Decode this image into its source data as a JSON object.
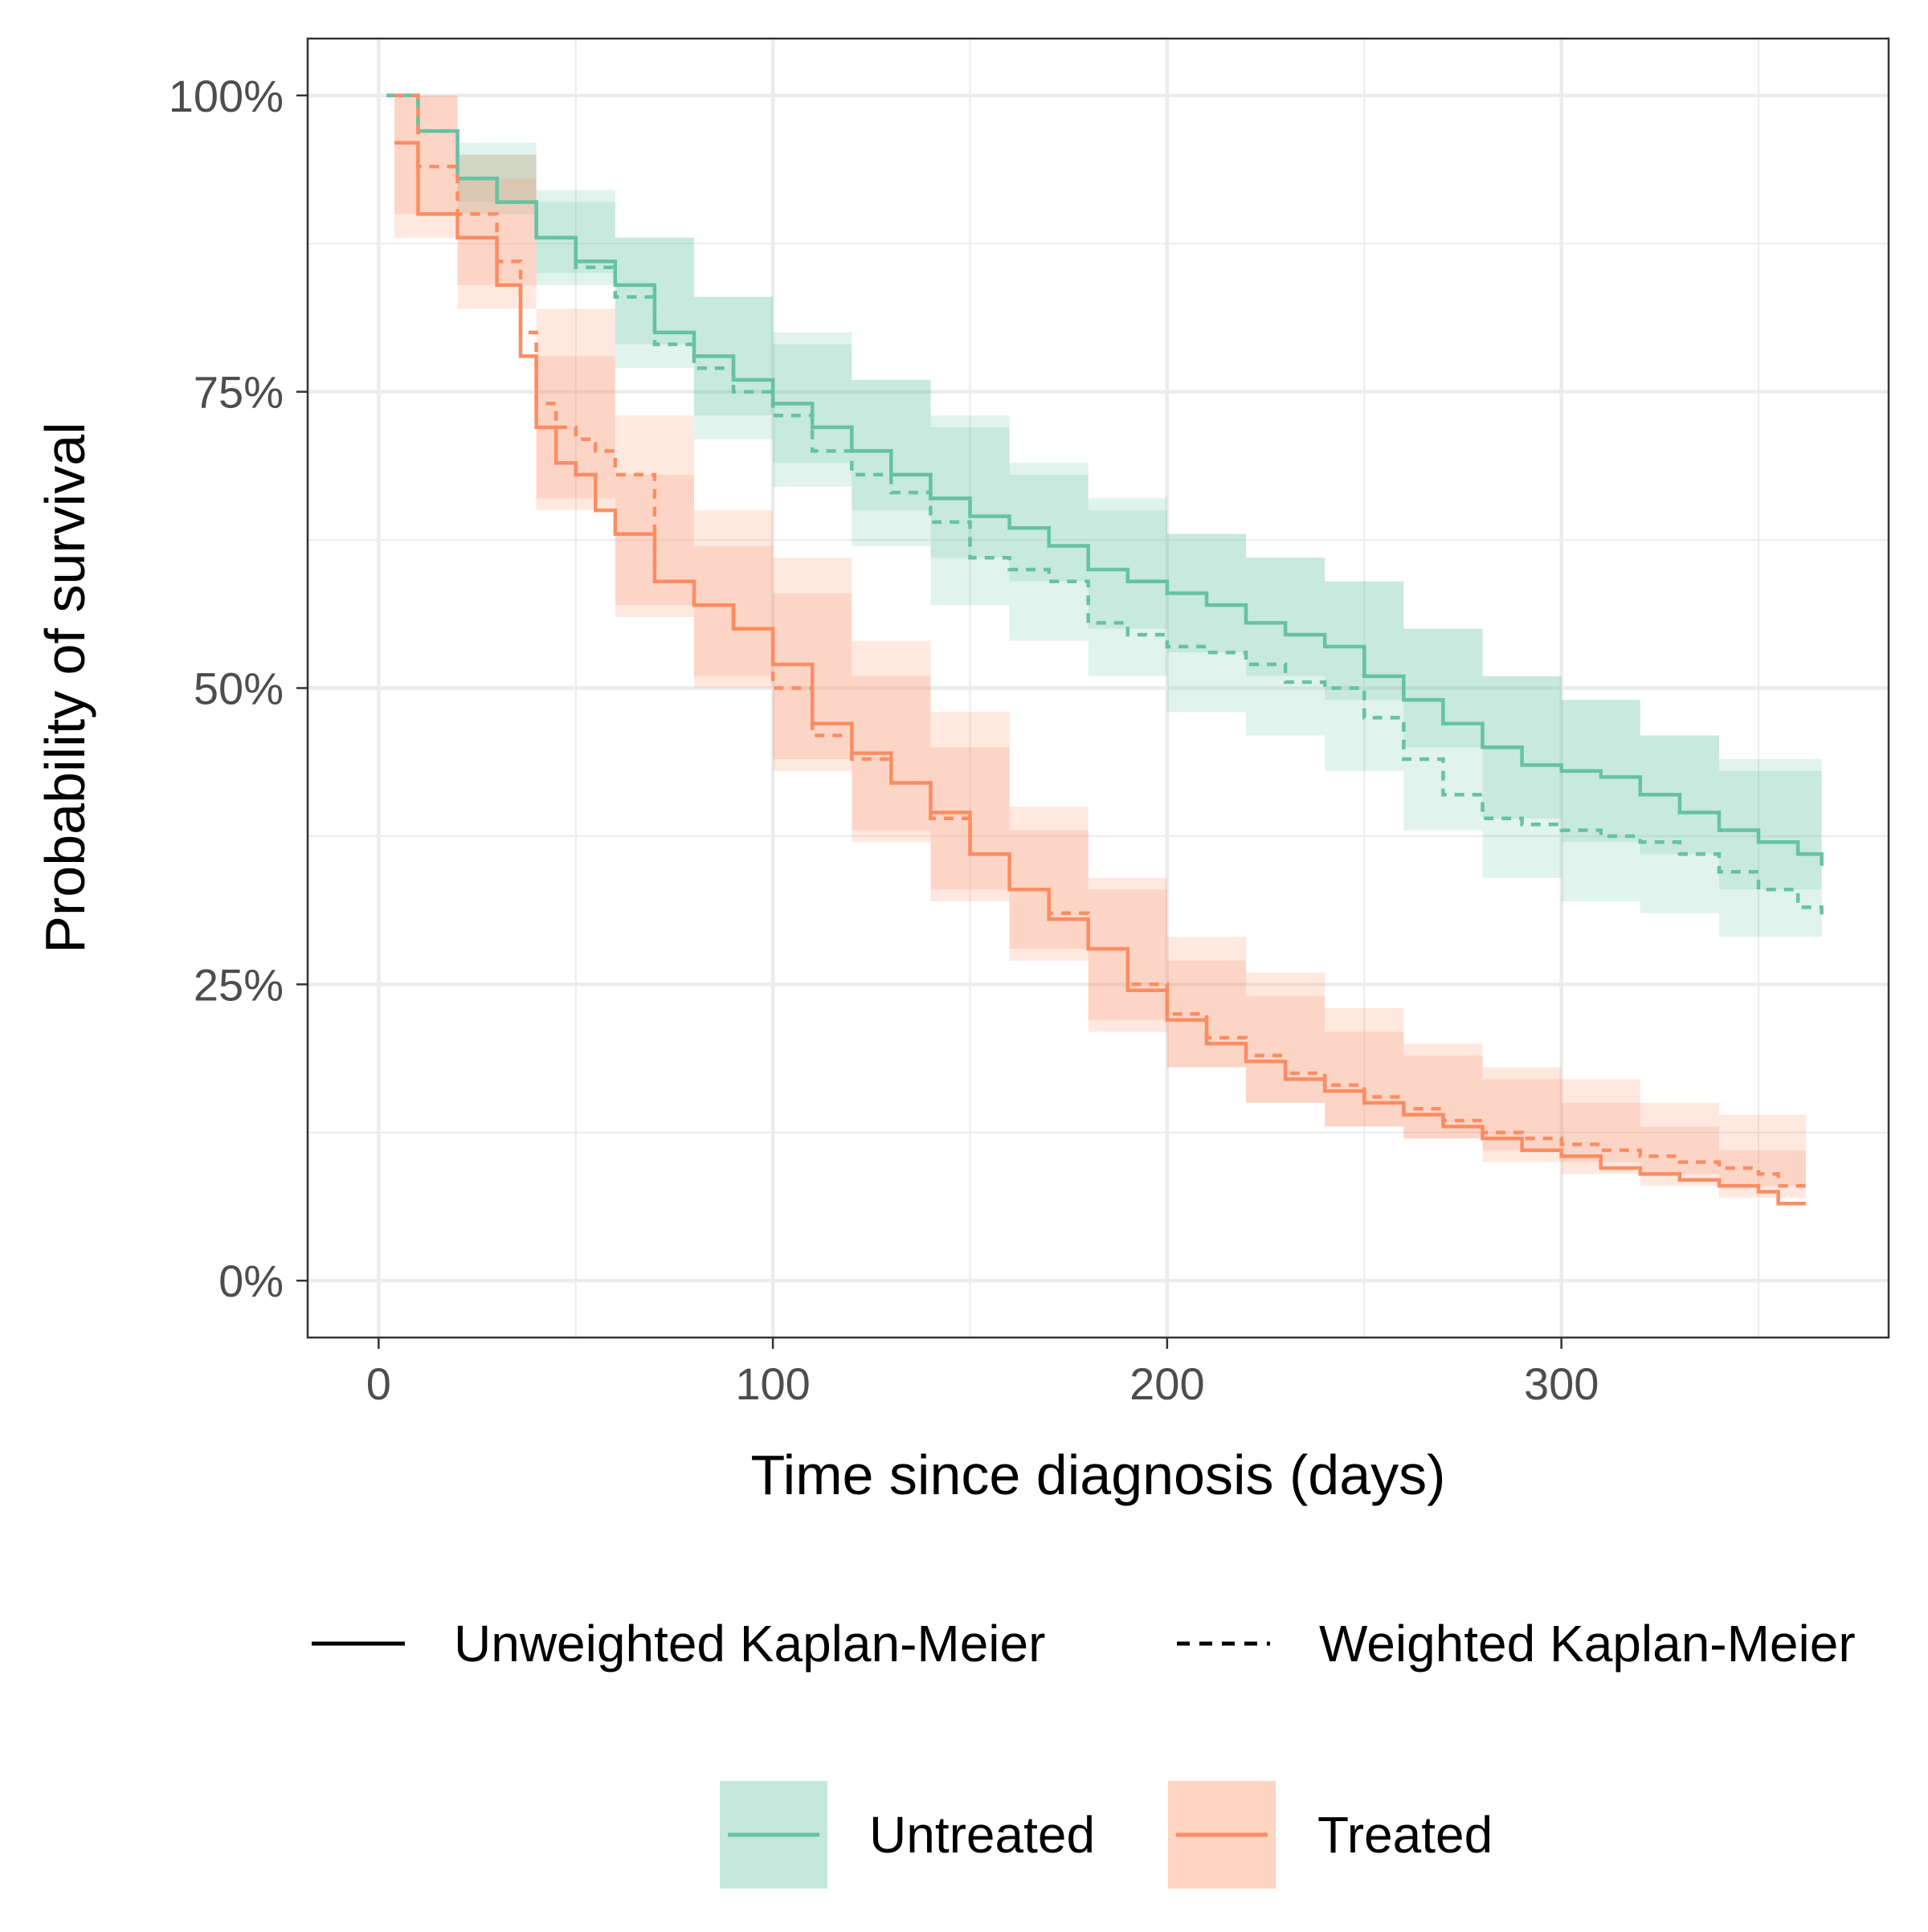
{
  "chart_data": {
    "type": "line",
    "subtype": "kaplan-meier survival curves with confidence bands",
    "xlabel": "Time since diagnosis (days)",
    "ylabel": "Probability of survival",
    "xlim": [
      -18,
      383
    ],
    "ylim": [
      -0.048,
      1.048
    ],
    "x_ticks": [
      0,
      100,
      200,
      300
    ],
    "x_tick_labels": [
      "0",
      "100",
      "200",
      "300"
    ],
    "y_ticks": [
      0,
      0.25,
      0.5,
      0.75,
      1.0
    ],
    "y_tick_labels": [
      "0%",
      "25%",
      "50%",
      "75%",
      "100%"
    ],
    "grid": true,
    "legend_position": "bottom",
    "linetype_legend": [
      {
        "label": "Unweighted Kaplan-Meier",
        "linetype": "solid"
      },
      {
        "label": "Weighted Kaplan-Meier",
        "linetype": "dashed"
      }
    ],
    "group_legend": [
      {
        "label": "Untreated",
        "color": "#66c2a5"
      },
      {
        "label": "Treated",
        "color": "#fc8d62"
      }
    ],
    "series": [
      {
        "group": "Untreated",
        "linetype": "solid",
        "color": "#66c2a5",
        "points": [
          [
            2,
            1.0
          ],
          [
            10,
            0.97
          ],
          [
            20,
            0.93
          ],
          [
            30,
            0.91
          ],
          [
            40,
            0.88
          ],
          [
            50,
            0.86
          ],
          [
            60,
            0.84
          ],
          [
            70,
            0.8
          ],
          [
            80,
            0.78
          ],
          [
            90,
            0.76
          ],
          [
            100,
            0.74
          ],
          [
            110,
            0.72
          ],
          [
            120,
            0.7
          ],
          [
            130,
            0.68
          ],
          [
            140,
            0.66
          ],
          [
            150,
            0.645
          ],
          [
            160,
            0.635
          ],
          [
            170,
            0.62
          ],
          [
            180,
            0.6
          ],
          [
            190,
            0.59
          ],
          [
            200,
            0.58
          ],
          [
            210,
            0.57
          ],
          [
            220,
            0.555
          ],
          [
            230,
            0.545
          ],
          [
            240,
            0.535
          ],
          [
            250,
            0.51
          ],
          [
            260,
            0.49
          ],
          [
            270,
            0.47
          ],
          [
            280,
            0.45
          ],
          [
            290,
            0.435
          ],
          [
            300,
            0.43
          ],
          [
            310,
            0.425
          ],
          [
            320,
            0.41
          ],
          [
            330,
            0.395
          ],
          [
            340,
            0.38
          ],
          [
            350,
            0.37
          ],
          [
            360,
            0.36
          ],
          [
            366,
            0.35
          ]
        ]
      },
      {
        "group": "Untreated",
        "linetype": "dashed",
        "color": "#66c2a5",
        "points": [
          [
            2,
            1.0
          ],
          [
            10,
            0.97
          ],
          [
            20,
            0.93
          ],
          [
            30,
            0.91
          ],
          [
            40,
            0.88
          ],
          [
            50,
            0.855
          ],
          [
            60,
            0.83
          ],
          [
            70,
            0.79
          ],
          [
            80,
            0.77
          ],
          [
            90,
            0.75
          ],
          [
            100,
            0.73
          ],
          [
            110,
            0.7
          ],
          [
            120,
            0.68
          ],
          [
            130,
            0.665
          ],
          [
            140,
            0.64
          ],
          [
            150,
            0.61
          ],
          [
            160,
            0.6
          ],
          [
            170,
            0.59
          ],
          [
            180,
            0.555
          ],
          [
            190,
            0.545
          ],
          [
            200,
            0.535
          ],
          [
            210,
            0.53
          ],
          [
            220,
            0.52
          ],
          [
            230,
            0.505
          ],
          [
            240,
            0.5
          ],
          [
            250,
            0.475
          ],
          [
            260,
            0.44
          ],
          [
            270,
            0.41
          ],
          [
            280,
            0.39
          ],
          [
            290,
            0.385
          ],
          [
            300,
            0.38
          ],
          [
            310,
            0.375
          ],
          [
            320,
            0.37
          ],
          [
            330,
            0.36
          ],
          [
            340,
            0.345
          ],
          [
            350,
            0.33
          ],
          [
            360,
            0.315
          ],
          [
            366,
            0.305
          ]
        ]
      },
      {
        "group": "Treated",
        "linetype": "solid",
        "color": "#fc8d62",
        "points": [
          [
            4,
            0.96
          ],
          [
            10,
            0.9
          ],
          [
            20,
            0.88
          ],
          [
            30,
            0.84
          ],
          [
            36,
            0.78
          ],
          [
            40,
            0.72
          ],
          [
            45,
            0.69
          ],
          [
            50,
            0.68
          ],
          [
            55,
            0.65
          ],
          [
            60,
            0.63
          ],
          [
            70,
            0.59
          ],
          [
            80,
            0.57
          ],
          [
            90,
            0.55
          ],
          [
            100,
            0.52
          ],
          [
            110,
            0.47
          ],
          [
            120,
            0.445
          ],
          [
            130,
            0.42
          ],
          [
            140,
            0.395
          ],
          [
            150,
            0.36
          ],
          [
            160,
            0.33
          ],
          [
            170,
            0.305
          ],
          [
            180,
            0.28
          ],
          [
            190,
            0.245
          ],
          [
            200,
            0.22
          ],
          [
            210,
            0.2
          ],
          [
            220,
            0.185
          ],
          [
            230,
            0.17
          ],
          [
            240,
            0.16
          ],
          [
            250,
            0.15
          ],
          [
            260,
            0.14
          ],
          [
            270,
            0.13
          ],
          [
            280,
            0.12
          ],
          [
            290,
            0.11
          ],
          [
            300,
            0.105
          ],
          [
            310,
            0.095
          ],
          [
            320,
            0.09
          ],
          [
            330,
            0.085
          ],
          [
            340,
            0.08
          ],
          [
            350,
            0.075
          ],
          [
            355,
            0.065
          ],
          [
            362,
            0.065
          ]
        ]
      },
      {
        "group": "Treated",
        "linetype": "dashed",
        "color": "#fc8d62",
        "points": [
          [
            4,
            1.0
          ],
          [
            10,
            0.94
          ],
          [
            20,
            0.9
          ],
          [
            30,
            0.86
          ],
          [
            36,
            0.8
          ],
          [
            40,
            0.74
          ],
          [
            45,
            0.72
          ],
          [
            50,
            0.71
          ],
          [
            55,
            0.7
          ],
          [
            60,
            0.68
          ],
          [
            70,
            0.59
          ],
          [
            80,
            0.57
          ],
          [
            90,
            0.55
          ],
          [
            100,
            0.5
          ],
          [
            110,
            0.46
          ],
          [
            120,
            0.44
          ],
          [
            130,
            0.42
          ],
          [
            140,
            0.39
          ],
          [
            150,
            0.36
          ],
          [
            160,
            0.33
          ],
          [
            170,
            0.31
          ],
          [
            180,
            0.28
          ],
          [
            190,
            0.25
          ],
          [
            200,
            0.225
          ],
          [
            210,
            0.205
          ],
          [
            220,
            0.19
          ],
          [
            230,
            0.175
          ],
          [
            240,
            0.165
          ],
          [
            250,
            0.155
          ],
          [
            260,
            0.145
          ],
          [
            270,
            0.135
          ],
          [
            280,
            0.125
          ],
          [
            290,
            0.12
          ],
          [
            300,
            0.115
          ],
          [
            310,
            0.11
          ],
          [
            320,
            0.105
          ],
          [
            330,
            0.1
          ],
          [
            340,
            0.095
          ],
          [
            350,
            0.09
          ],
          [
            355,
            0.08
          ],
          [
            362,
            0.08
          ]
        ]
      }
    ],
    "confidence_bands": [
      {
        "group": "Untreated",
        "linetype": "solid",
        "color": "#66c2a5",
        "x": [
          2,
          20,
          40,
          60,
          80,
          100,
          120,
          140,
          160,
          180,
          200,
          220,
          240,
          260,
          280,
          300,
          320,
          340,
          366
        ],
        "lower": [
          1.0,
          0.91,
          0.85,
          0.79,
          0.73,
          0.69,
          0.65,
          0.61,
          0.59,
          0.55,
          0.53,
          0.51,
          0.49,
          0.45,
          0.39,
          0.37,
          0.36,
          0.33,
          0.3
        ],
        "upper": [
          1.0,
          0.95,
          0.91,
          0.88,
          0.83,
          0.79,
          0.76,
          0.72,
          0.69,
          0.66,
          0.63,
          0.61,
          0.59,
          0.55,
          0.51,
          0.49,
          0.46,
          0.43,
          0.4
        ]
      },
      {
        "group": "Untreated",
        "linetype": "dashed",
        "color": "#66c2a5",
        "x": [
          2,
          20,
          40,
          60,
          80,
          100,
          120,
          140,
          160,
          180,
          200,
          220,
          240,
          260,
          280,
          300,
          320,
          340,
          366
        ],
        "lower": [
          1.0,
          0.9,
          0.84,
          0.77,
          0.71,
          0.67,
          0.62,
          0.57,
          0.54,
          0.51,
          0.48,
          0.46,
          0.43,
          0.38,
          0.34,
          0.32,
          0.31,
          0.29,
          0.26
        ],
        "upper": [
          1.0,
          0.96,
          0.92,
          0.88,
          0.83,
          0.8,
          0.76,
          0.73,
          0.68,
          0.65,
          0.63,
          0.61,
          0.59,
          0.55,
          0.51,
          0.49,
          0.46,
          0.44,
          0.41
        ]
      },
      {
        "group": "Treated",
        "linetype": "solid",
        "color": "#fc8d62",
        "x": [
          4,
          20,
          40,
          60,
          80,
          100,
          120,
          140,
          160,
          180,
          200,
          220,
          240,
          260,
          280,
          300,
          320,
          340,
          362
        ],
        "lower": [
          0.88,
          0.82,
          0.65,
          0.56,
          0.5,
          0.44,
          0.38,
          0.33,
          0.28,
          0.22,
          0.18,
          0.15,
          0.13,
          0.12,
          0.1,
          0.09,
          0.08,
          0.07,
          0.06
        ],
        "upper": [
          1.0,
          0.93,
          0.78,
          0.68,
          0.62,
          0.58,
          0.51,
          0.45,
          0.38,
          0.33,
          0.27,
          0.24,
          0.21,
          0.19,
          0.17,
          0.15,
          0.13,
          0.11,
          0.1
        ]
      },
      {
        "group": "Treated",
        "linetype": "dashed",
        "color": "#fc8d62",
        "x": [
          4,
          20,
          40,
          60,
          80,
          100,
          120,
          140,
          160,
          180,
          200,
          220,
          240,
          260,
          280,
          300,
          320,
          340,
          362
        ],
        "lower": [
          0.9,
          0.84,
          0.66,
          0.57,
          0.51,
          0.43,
          0.37,
          0.32,
          0.27,
          0.21,
          0.18,
          0.15,
          0.13,
          0.12,
          0.11,
          0.1,
          0.09,
          0.08,
          0.05
        ],
        "upper": [
          1.0,
          0.95,
          0.82,
          0.73,
          0.65,
          0.61,
          0.54,
          0.48,
          0.4,
          0.34,
          0.29,
          0.26,
          0.23,
          0.2,
          0.18,
          0.17,
          0.15,
          0.14,
          0.12
        ]
      }
    ]
  }
}
